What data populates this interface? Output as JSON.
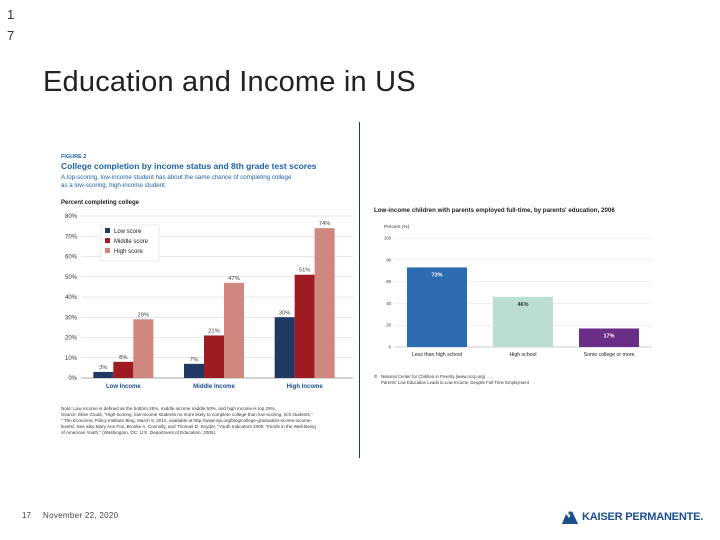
{
  "slide": {
    "number_top": [
      "1",
      "7"
    ],
    "title": "Education and Income in US",
    "footer_number": "17",
    "footer_date": "November 22, 2020",
    "logo_text": "KAISER PERMANENTE."
  },
  "chart_data": [
    {
      "type": "bar",
      "figure_label": "FIGURE 2",
      "title": "College completion by income status and 8th grade test scores",
      "subtitle": [
        "A top-scoring, low-income student has about the same chance of completing college",
        "as a low-scoring, high-income student"
      ],
      "ylabel": "Percent completing college",
      "ylim": [
        0,
        80
      ],
      "yticks": [
        "0%",
        "10%",
        "20%",
        "30%",
        "40%",
        "50%",
        "60%",
        "70%",
        "80%"
      ],
      "categories": [
        "Low Income",
        "Middle Income",
        "High Income"
      ],
      "series": [
        {
          "name": "Low score",
          "color": "#1f3864",
          "values": [
            3,
            7,
            30
          ]
        },
        {
          "name": "Middle score",
          "color": "#9e1b22",
          "values": [
            8,
            21,
            51
          ]
        },
        {
          "name": "High score",
          "color": "#cf8780",
          "values": [
            29,
            47,
            74
          ]
        }
      ],
      "legend_position": "top-left",
      "note": [
        "Note: Low income is defined as the bottom 25%, middle income middle 50%, and high income is top 25%.",
        "Source: Elise Gould, \"High-scoring, low-income students no more likely to complete college than low-scoring, rich students,\"",
        "\" The Economic Policy Institute Blog, March 9, 2012, available at http://www.epi.org/blog/college-graduation-scores-income-",
        "levels/. See also Mary Ann Fox, Brooke A. Connolly, and Thomas D. Snyder, \"Youth Indicators 2005: Trends in the Well-Being",
        "of American Youth,\" (Washington, DC: U.S. Department of Education, 2005)."
      ]
    },
    {
      "type": "bar",
      "title": "Low-income children with parents employed full-time, by parents' education, 2006",
      "ylabel": "Percent (%)",
      "ylim": [
        0,
        100
      ],
      "yticks": [
        "0",
        "20",
        "40",
        "60",
        "80",
        "100"
      ],
      "categories": [
        "Less than high school",
        "High school",
        "Some college or more"
      ],
      "values": [
        73,
        46,
        17
      ],
      "value_labels": [
        "73%",
        "46%",
        "17%"
      ],
      "colors": [
        "#2b6cb0",
        "#b9dfd0",
        "#6a2e86"
      ],
      "label_colors": [
        "#ffffff",
        "#333333",
        "#ffffff"
      ],
      "source": [
        "National Center for Children in Poverty (www.nccp.org)",
        "Parents' Low Education Leads to Low Income, Despite Full-Time Employment"
      ],
      "source_mark": "©"
    }
  ]
}
